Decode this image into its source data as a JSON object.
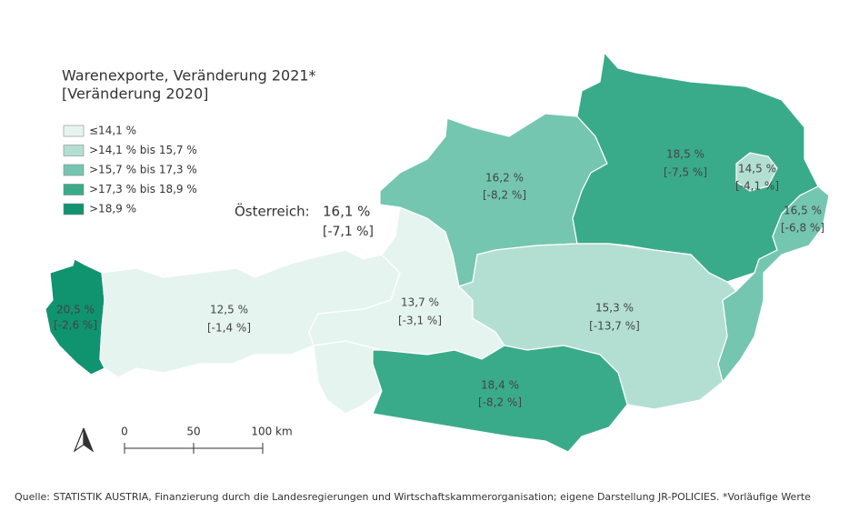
{
  "title": "Warenexporte, Veränderung 2021*",
  "subtitle": "[Veränderung 2020]",
  "legend": [
    {
      "label": "≤14,1 %",
      "color": "#e6f4ef"
    },
    {
      "label": ">14,1 % bis 15,7 %",
      "color": "#b3dfd2"
    },
    {
      "label": ">15,7 % bis 17,3 %",
      "color": "#74c6b0"
    },
    {
      "label": ">17,3 % bis 18,9 %",
      "color": "#3aab8a"
    },
    {
      "label": ">18,9 %",
      "color": "#10936f"
    }
  ],
  "total": {
    "label": "Österreich:",
    "value": "16,1 %",
    "previous": "[-7,1 %]"
  },
  "regions": [
    {
      "value": "20,5 %",
      "previous": "[-2,6 %]",
      "color": "#10936f"
    },
    {
      "value": "12,5 %",
      "previous": "[-1,4 %]",
      "color": "#e6f4ef"
    },
    {
      "value": "13,7 %",
      "previous": "[-3,1 %]",
      "color": "#e6f4ef"
    },
    {
      "value": "16,2 %",
      "previous": "[-8,2 %]",
      "color": "#74c6b0"
    },
    {
      "value": "18,5 %",
      "previous": "[-7,5 %]",
      "color": "#3aab8a"
    },
    {
      "value": "14,5 %",
      "previous": "[-4,1 %]",
      "color": "#b3dfd2"
    },
    {
      "value": "16,5 %",
      "previous": "[-6,8 %]",
      "color": "#74c6b0"
    },
    {
      "value": "15,3 %",
      "previous": "[-13,7 %]",
      "color": "#b3dfd2"
    },
    {
      "value": "18,4 %",
      "previous": "[-8,2 %]",
      "color": "#3aab8a"
    }
  ],
  "scale": [
    "0",
    "50",
    "100 km"
  ],
  "source": "Quelle: STATISTIK AUSTRIA, Finanzierung durch die Landesregierungen und Wirtschaftskammerorganisation; eigene Darstellung JR-POLICIES. *Vorläufige Werte"
}
